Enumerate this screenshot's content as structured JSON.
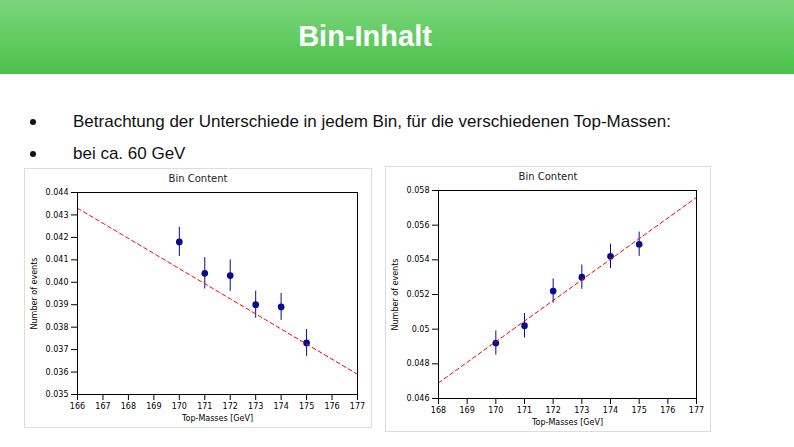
{
  "slide": {
    "title": "Bin-Inhalt",
    "bullets": [
      "Betrachtung der Unterschiede in jedem Bin, für die verschiedenen Top-Massen:",
      "bei ca. 60 GeV"
    ]
  },
  "chart_data": [
    {
      "type": "scatter",
      "title": "Bin Content",
      "x_label": "Top-Masses [GeV]",
      "y_label": "Number of events",
      "xlim": [
        166,
        177
      ],
      "xticks": [
        166,
        167,
        168,
        169,
        170,
        171,
        172,
        173,
        174,
        175,
        176,
        177
      ],
      "ylim": [
        0.035,
        0.044
      ],
      "yticks": [
        0.035,
        0.036,
        0.037,
        0.038,
        0.039,
        {
          "value": 0.04,
          "label": "0.040"
        },
        0.041,
        0.042,
        0.043,
        0.044
      ],
      "grid": false,
      "series": [
        {
          "type": "scatter",
          "marker": "circle",
          "color": "#0a0a8c",
          "x": [
            170,
            171,
            172,
            173,
            174,
            175
          ],
          "values": [
            0.0418,
            0.0404,
            0.0403,
            0.039,
            0.0389,
            0.0373
          ],
          "errors": [
            0.00065,
            0.0007,
            0.0007,
            0.0006,
            0.0006,
            0.0006
          ]
        },
        {
          "type": "line",
          "line_style": "dashed",
          "color": "#ff0000",
          "x": [
            166,
            177
          ],
          "values": [
            0.0433,
            0.0359
          ]
        }
      ]
    },
    {
      "type": "scatter",
      "title": "Bin Content",
      "x_label": "Top-Masses [GeV]",
      "y_label": "Number of events",
      "xlim": [
        168,
        177
      ],
      "xticks": [
        168,
        169,
        170,
        171,
        172,
        173,
        174,
        175,
        176,
        177
      ],
      "ylim": [
        0.046,
        0.058
      ],
      "yticks": [
        0.046,
        0.048,
        0.05,
        0.052,
        0.054,
        0.056,
        0.058
      ],
      "grid": false,
      "series": [
        {
          "type": "scatter",
          "marker": "circle",
          "color": "#0a0a8c",
          "x": [
            170,
            171,
            172,
            173,
            174,
            175
          ],
          "values": [
            0.0492,
            0.0502,
            0.0522,
            0.053,
            0.0542,
            0.0549
          ],
          "errors": [
            0.0007,
            0.0007,
            0.0007,
            0.0007,
            0.0007,
            0.0007
          ]
        },
        {
          "type": "line",
          "line_style": "dashed",
          "color": "#ff0000",
          "x": [
            168,
            177
          ],
          "values": [
            0.0469,
            0.0576
          ]
        }
      ]
    }
  ]
}
